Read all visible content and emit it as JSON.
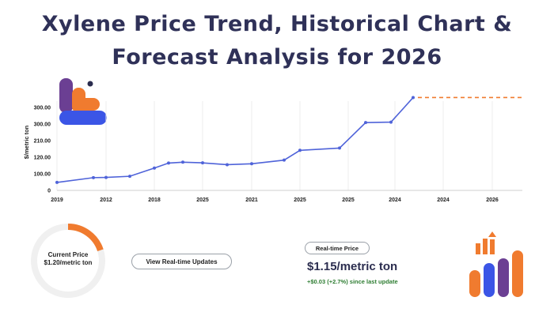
{
  "title": {
    "line1": "Xylene Price Trend, Historical Chart &",
    "line2": "Forecast Analysis for 2026"
  },
  "colors": {
    "line": "#4f63d9",
    "forecast": "#f07b2f",
    "orange": "#f07b2f",
    "purple": "#6b3f93",
    "blue": "#3b55e6",
    "dark": "#2b2d4f",
    "green": "#2e7d32"
  },
  "chart_data": {
    "type": "line",
    "ylabel": "$/metric ton",
    "y_tick_labels": [
      "0",
      "100.00",
      "120.00",
      "210.00",
      "300.00",
      "300.00"
    ],
    "x_tick_labels": [
      "2019",
      "2012",
      "2018",
      "2025",
      "2021",
      "2025",
      "2025",
      "2024",
      "2024",
      "2026"
    ],
    "series": [
      {
        "values": [
          35,
          56,
          57,
          62,
          98,
          120,
          124,
          121,
          113,
          117,
          133,
          176,
          186,
          298,
          300,
          408
        ]
      }
    ],
    "forecast_value": 408,
    "forecast_style": "dashed"
  },
  "gauge": {
    "label": "Current Price",
    "value_text": "$1.20/metric ton",
    "fill_fraction": 0.2
  },
  "updates_button": {
    "label": "View Real-time Updates"
  },
  "realtime": {
    "pill": "Real-time Price",
    "price": "$1.15/metric ton",
    "change": "+$0.03 (+2.7%) since last update"
  },
  "icons": {
    "logo": "brand-logo-icon",
    "growth": "bar-growth-icon"
  }
}
